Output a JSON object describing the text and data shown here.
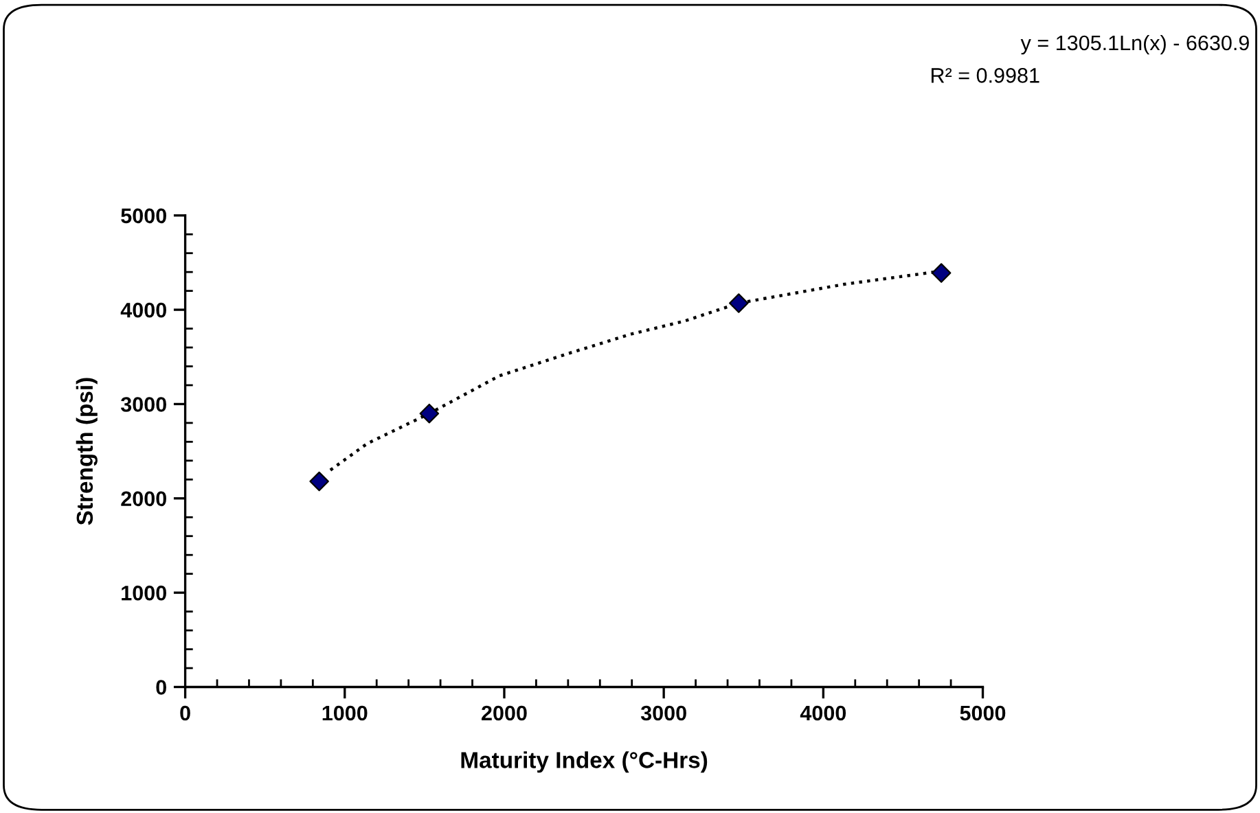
{
  "chart_data": {
    "type": "scatter",
    "xlabel": "Maturity Index (°C-Hrs)",
    "ylabel": "Strength (psi)",
    "series": [
      {
        "color": "#000080",
        "marker": "diamond",
        "x": [
          840,
          1530,
          3470,
          4740
        ],
        "values": [
          2180,
          2900,
          4070,
          4390
        ]
      },
      {
        "type": "line",
        "color": "#000000",
        "line_style": "dotted",
        "marker": "none",
        "x": [
          910,
          1140,
          1530,
          1970,
          2390,
          2790,
          3130,
          3470,
          4130,
          4740
        ],
        "values": [
          2300,
          2580,
          2900,
          3300,
          3530,
          3740,
          3880,
          4070,
          4270,
          4410
        ]
      }
    ],
    "annotations": [
      "y = 1305.1Ln(x) - 6630.9",
      "R² = 0.9981"
    ],
    "xlim": [
      0,
      5000
    ],
    "xticks": [
      0,
      1000,
      2000,
      3000,
      4000,
      5000
    ],
    "ylim": [
      0,
      5000
    ],
    "yticks": [
      0,
      1000,
      2000,
      3000,
      4000,
      5000
    ],
    "grid": false,
    "legend": false
  }
}
